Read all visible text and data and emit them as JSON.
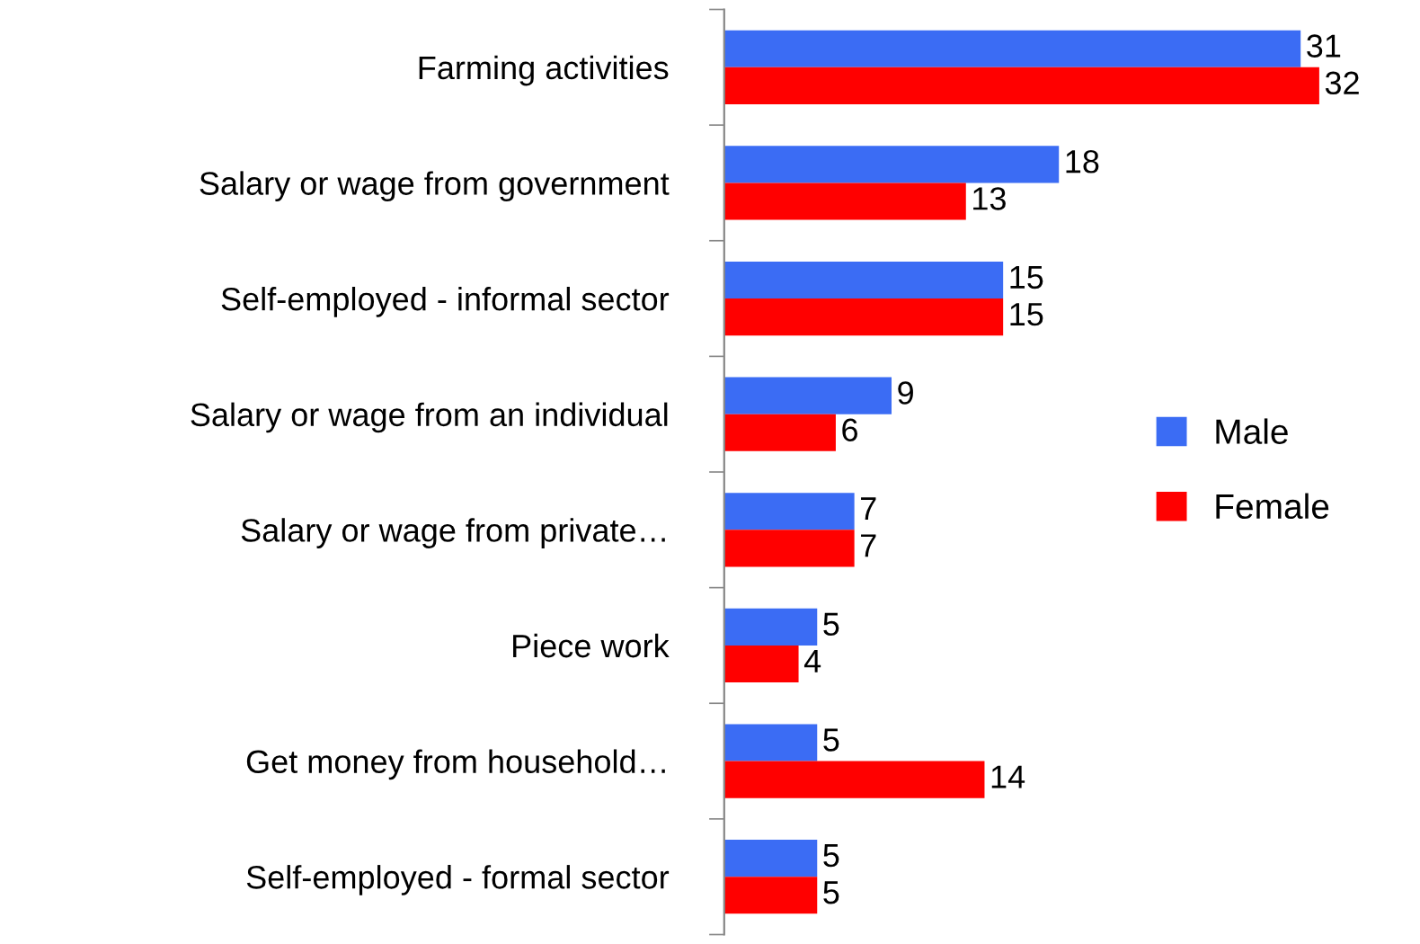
{
  "chart_data": {
    "type": "bar",
    "orientation": "horizontal",
    "data_labels": true,
    "legend": "right",
    "grid": false,
    "categories": [
      "Farming activities",
      "Salary or wage from government",
      "Self-employed - informal sector",
      "Salary or wage from an individual",
      "Salary or wage from private…",
      "Piece work",
      "Get money from household…",
      "Self-employed - formal sector"
    ],
    "series": [
      {
        "name": "Male",
        "color": "#3b6cf4",
        "values": [
          31,
          18,
          15,
          9,
          7,
          5,
          5,
          5
        ]
      },
      {
        "name": "Female",
        "color": "#ff0000",
        "values": [
          32,
          13,
          15,
          6,
          7,
          4,
          14,
          5
        ]
      }
    ]
  }
}
